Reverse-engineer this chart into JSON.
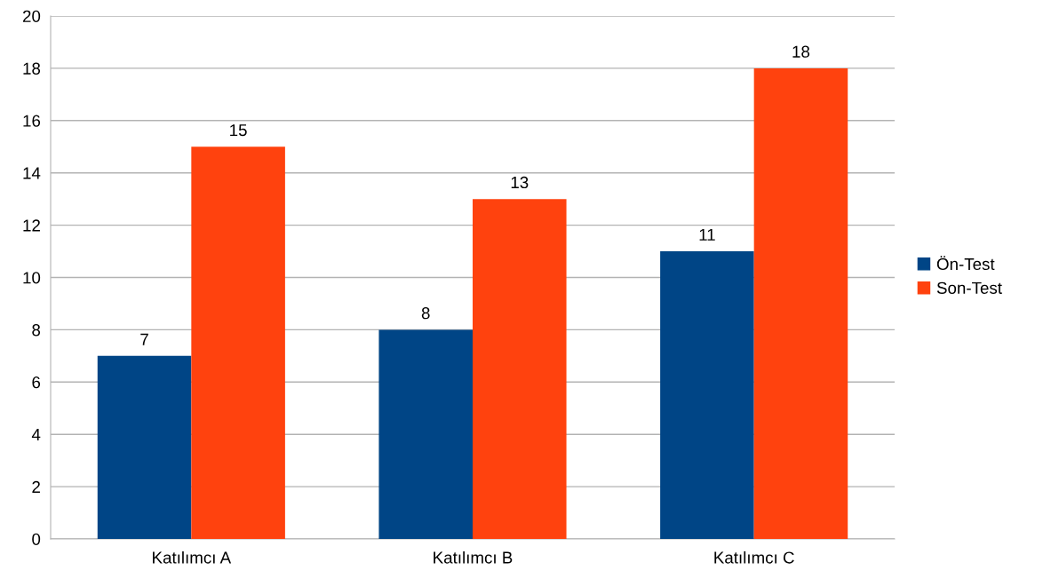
{
  "chart_data": {
    "type": "bar",
    "categories": [
      "Katılımcı A",
      "Katılımcı B",
      "Katılımcı C"
    ],
    "series": [
      {
        "name": "Ön-Test",
        "color": "#004586",
        "values": [
          7,
          8,
          11
        ]
      },
      {
        "name": "Son-Test",
        "color": "#ff420e",
        "values": [
          15,
          13,
          18
        ]
      }
    ],
    "ylim": [
      0,
      20
    ],
    "yticks": [
      0,
      2,
      4,
      6,
      8,
      10,
      12,
      14,
      16,
      18,
      20
    ],
    "grid": "y",
    "legend": "right",
    "data_labels": true
  }
}
